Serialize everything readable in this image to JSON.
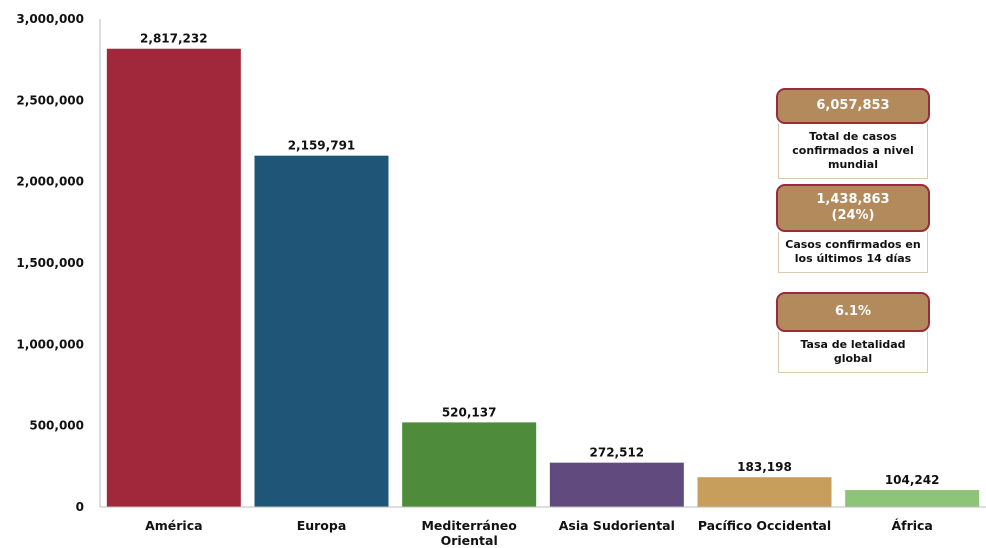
{
  "chart_data": {
    "type": "bar",
    "categories": [
      [
        "América"
      ],
      [
        "Europa"
      ],
      [
        "Mediterráneo",
        "Oriental"
      ],
      [
        "Asia Sudoriental"
      ],
      [
        "Pacífico Occidental"
      ],
      [
        "África"
      ]
    ],
    "values": [
      2817232,
      2159791,
      520137,
      272512,
      183198,
      104242
    ],
    "value_labels": [
      "2,817,232",
      "2,159,791",
      "520,137",
      "272,512",
      "183,198",
      "104,242"
    ],
    "colors": [
      "#a0283a",
      "#1f5577",
      "#4e8b3a",
      "#614a7d",
      "#c79e5c",
      "#8dc478"
    ],
    "ylim": [
      0,
      3000000
    ],
    "yticks": [
      0,
      500000,
      1000000,
      1500000,
      2000000,
      2500000,
      3000000
    ],
    "ytick_labels": [
      "0",
      "500,000",
      "1,000,000",
      "1,500,000",
      "2,000,000",
      "2,500,000",
      "3,000,000"
    ],
    "grid": false,
    "title": "",
    "xlabel": "",
    "ylabel": ""
  },
  "stats": {
    "total": {
      "value": "6,057,853",
      "label": "Total de casos confirmados a nivel mundial"
    },
    "recent": {
      "value": "1,438,863",
      "pct": "(24%)",
      "label": "Casos confirmados en los últimos 14 días"
    },
    "lethality": {
      "value": "6.1%",
      "label": "Tasa de letalidad global"
    }
  }
}
